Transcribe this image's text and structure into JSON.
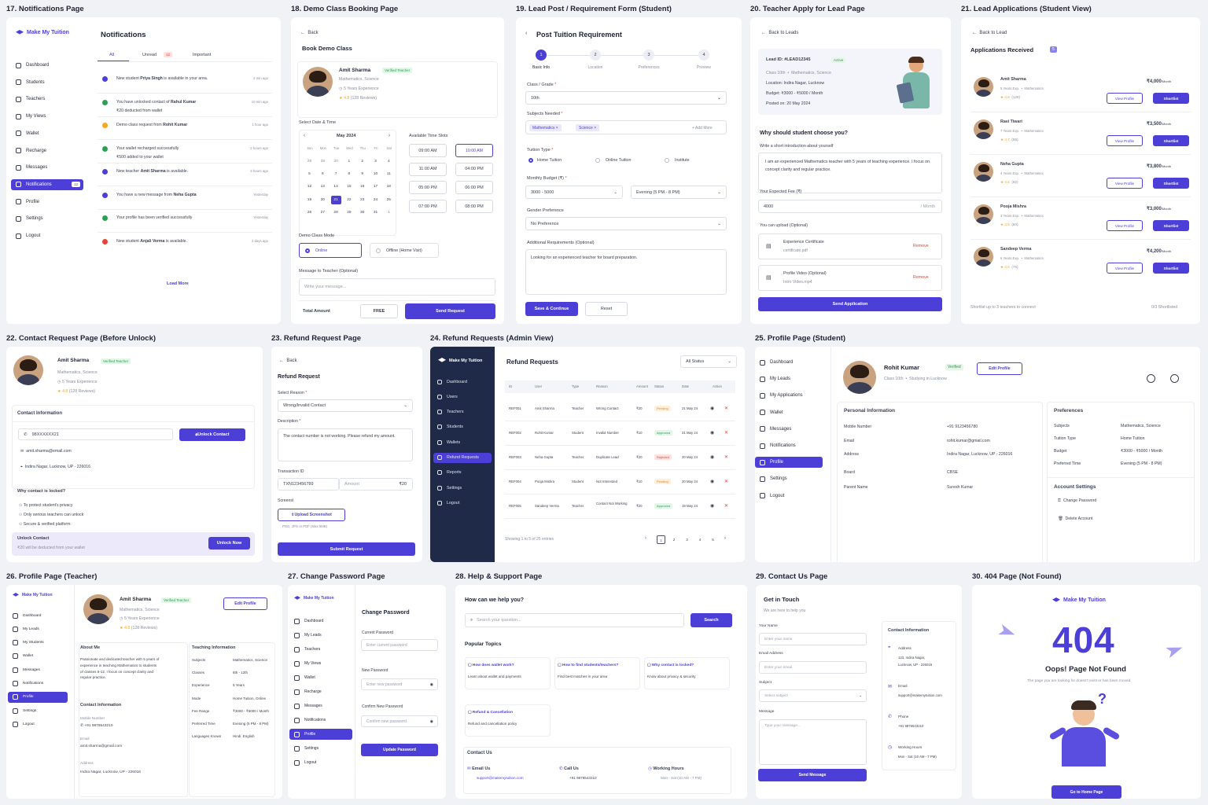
{
  "brand": "Make My Tuition",
  "s17": {
    "title": "17. Notifications Page",
    "heading": "Notifications",
    "nav": [
      "Dashboard",
      "Students",
      "Teachers",
      "My Views",
      "Wallet",
      "Recharge",
      "Messages",
      "Notifications",
      "Profile",
      "Settings",
      "Logout"
    ],
    "nav_badge": "12",
    "tabs": [
      "All",
      "Unread",
      "Important"
    ],
    "unread_count": "12",
    "items": [
      {
        "a": "New student ",
        "b": "Priya Singh",
        "c": " is available in your area.",
        "d": "",
        "time": "2 min ago",
        "color": "#4b3fd8"
      },
      {
        "a": "You have unlocked contact of ",
        "b": "Rahul Kumar",
        "c": "",
        "d": "₹20 deducted from wallet",
        "time": "10 min ago",
        "color": "#2f9e55"
      },
      {
        "a": "Demo class request from ",
        "b": "Rohit Kumar",
        "c": "",
        "d": "",
        "time": "1 hour ago",
        "color": "#f5a623"
      },
      {
        "a": "Your wallet recharged successfully",
        "b": "",
        "c": "",
        "d": "₹500 added to your wallet",
        "time": "2 hours ago",
        "color": "#2f9e55"
      },
      {
        "a": "New teacher ",
        "b": "Amit Sharma",
        "c": " is available.",
        "d": "",
        "time": "3 hours ago",
        "color": "#4b3fd8"
      },
      {
        "a": "You have a new message from ",
        "b": "Neha Gupta",
        "c": "",
        "d": "",
        "time": "Yesterday",
        "color": "#4b3fd8"
      },
      {
        "a": "Your profile has been verified successfully",
        "b": "",
        "c": "",
        "d": "",
        "time": "Yesterday",
        "color": "#2f9e55"
      },
      {
        "a": "New student ",
        "b": "Anjali Verma",
        "c": " is available.",
        "d": "",
        "time": "2 days ago",
        "color": "#e0453a"
      }
    ],
    "load_more": "Load More"
  },
  "s18": {
    "title": "18. Demo Class Booking Page",
    "back": "Back",
    "heading": "Book Demo Class",
    "name": "Amit Sharma",
    "verified": "Verified Teacher",
    "subjects": "Mathematics, Science",
    "exp": "5 Years Experience",
    "rating": "★ 4.8",
    "reviews": "(128 Reviews)",
    "date_label": "Select Date & Time",
    "month": "May 2024",
    "days": [
      "Sun",
      "Mon",
      "Tue",
      "Wed",
      "Thu",
      "Fri",
      "Sat"
    ],
    "dates": [
      [
        "28",
        "29",
        "30",
        "1",
        "2",
        "3",
        "4"
      ],
      [
        "5",
        "6",
        "7",
        "8",
        "9",
        "10",
        "11"
      ],
      [
        "12",
        "13",
        "14",
        "15",
        "16",
        "17",
        "18"
      ],
      [
        "19",
        "20",
        "21",
        "22",
        "23",
        "24",
        "25"
      ],
      [
        "26",
        "27",
        "28",
        "29",
        "30",
        "31",
        "1"
      ]
    ],
    "slots_label": "Available Time Slots",
    "slots": [
      "09:00 AM",
      "10:00 AM",
      "11:00 AM",
      "04:00 PM",
      "05:00 PM",
      "06:00 PM",
      "07:00 PM",
      "08:00 PM"
    ],
    "mode_label": "Demo Class Mode",
    "online": "Online",
    "offline": "Offline (Home Visit)",
    "msg_label": "Message to Teacher (Optional)",
    "msg_ph": "Write your message...",
    "total": "Total Amount",
    "free": "FREE",
    "send": "Send Request"
  },
  "s19": {
    "title": "19. Lead Post / Requirement Form (Student)",
    "heading": "Post Tuition Requirement",
    "steps": [
      {
        "n": "1",
        "l": "Basic Info"
      },
      {
        "n": "2",
        "l": "Location"
      },
      {
        "n": "3",
        "l": "Preferences"
      },
      {
        "n": "4",
        "l": "Preview"
      }
    ],
    "class_label": "Class / Grade",
    "class_val": "10th",
    "subj_label": "Subjects Needed",
    "subj": [
      "Mathematics",
      "Science"
    ],
    "add_more": "+ Add More",
    "type_label": "Tuition Type",
    "types": [
      "Home Tuition",
      "Online Tuition",
      "Institute"
    ],
    "budget_label": "Monthly Budget (₹)",
    "budget": "3000 - 5000",
    "time": "Evening (5 PM - 8 PM)",
    "gender_label": "Gender Preference",
    "gender": "No Preference",
    "req_label": "Additional Requirements (Optional)",
    "req": "Looking for an experienced teacher for board preparation.",
    "save": "Save & Continue",
    "reset": "Reset"
  },
  "s20": {
    "title": "20. Teacher Apply for Lead Page",
    "back": "Back to Leads",
    "lead_id": "Lead ID: #LEAD12345",
    "active": "Active",
    "class": "Class 10th",
    "subjects": "Mathematics, Science",
    "loc": "Location:  Indira Nagar, Lucknow",
    "budget": "Budget:  ₹3000 - ₹5000 / Month",
    "posted": "Posted on:  20 May 2024",
    "why": "Why should student choose you?",
    "intro_label": "Write a short introduction about yourself",
    "intro": "I am an experienced Mathematics teacher with 5 years of teaching experience. I focus on concept clarity and regular practice.",
    "fee_label": "Your Expected Fee (₹)",
    "fee": "4000",
    "month": "/ Month",
    "upload_label": "You can upload (Optional)",
    "files": [
      {
        "t": "Experience Certificate",
        "f": "certificate.pdf"
      },
      {
        "t": "Profile Video (Optional)",
        "f": "Intro Video.mp4"
      }
    ],
    "remove": "Remove",
    "submit": "Send Application"
  },
  "s21": {
    "title": "21. Lead Applications (Student View)",
    "back": "Back to Lead",
    "heading": "Applications Received",
    "count": "5",
    "apps": [
      {
        "name": "Amit Sharma",
        "exp": "5 Years Exp.",
        "subj": "Mathematics",
        "rating": "4.8",
        "rev": "(128)",
        "fee": "₹4,000"
      },
      {
        "name": "Ravi Tiwari",
        "exp": "7 Years Exp.",
        "subj": "Mathematics",
        "rating": "4.7",
        "rev": "(85)",
        "fee": "₹3,500"
      },
      {
        "name": "Neha Gupta",
        "exp": "4 Years Exp.",
        "subj": "Mathematics",
        "rating": "4.6",
        "rev": "(62)",
        "fee": "₹3,800"
      },
      {
        "name": "Pooja Mishra",
        "exp": "3 Years Exp.",
        "subj": "Mathematics",
        "rating": "4.5",
        "rev": "(60)",
        "fee": "₹3,000"
      },
      {
        "name": "Sandeep Verma",
        "exp": "6 Years Exp.",
        "subj": "Mathematics",
        "rating": "4.6",
        "rev": "(75)",
        "fee": "₹4,200"
      }
    ],
    "per": "/Month",
    "view": "View Profile",
    "short": "Shortlist",
    "footer": "Shortlist up to 3 teachers to connect",
    "shortlisted": "0/3 Shortlisted"
  },
  "s22": {
    "title": "22. Contact Request Page (Before Unlock)",
    "name": "Amit Sharma",
    "verified": "Verified Teacher",
    "subjects": "Mathematics, Science",
    "exp": "5 Years Experience",
    "rating": "★ 4.8",
    "reviews": "(128 Reviews)",
    "ci": "Contact Information",
    "phone": "98XXXXXX21",
    "unlock": "Unlock Contact",
    "email": "amit.sharma@email.com",
    "addr": "Indira Nagar, Lucknow, UP - 226016",
    "why": "Why contact is locked?",
    "reasons": [
      "To protect student's privacy",
      "Only serious teachers can unlock",
      "Secure & verified platform"
    ],
    "uc": "Unlock Contact",
    "uc_sub": "₹20 will be deducted from your wallet",
    "unlock_now": "Unlock Now"
  },
  "s23": {
    "title": "23. Refund Request Page",
    "back": "Back",
    "heading": "Refund Request",
    "reason_label": "Select Reason",
    "reason": "Wrong/Invalid Contact",
    "desc_label": "Description",
    "desc": "The contact number is not working. Please refund my amount.",
    "txn_label": "Transaction ID",
    "txn": "TXN123456789",
    "amount": "Amount",
    "amount_val": "₹20",
    "ss_label": "Screensl",
    "upload": "Upload Screenshot",
    "upload_hint": "PNG, JPG or PDF (Max 5MB)",
    "submit": "Submit Request"
  },
  "s24": {
    "title": "24. Refund Requests (Admin View)",
    "heading": "Refund Requests",
    "filter": "All Status",
    "nav": [
      "Dashboard",
      "Users",
      "Teachers",
      "Students",
      "Wallets",
      "Refund Requests",
      "Reports",
      "Settings",
      "Logout"
    ],
    "cols": [
      "ID",
      "User",
      "Type",
      "Reason",
      "Amount",
      "Status",
      "Date",
      "Action"
    ],
    "rows": [
      {
        "id": "REF001",
        "user": "Amit Sharma",
        "type": "Teacher",
        "reason": "Wrong Contact",
        "amt": "₹20",
        "status": "Pending",
        "date": "21 May 24"
      },
      {
        "id": "REF002",
        "user": "Rohit Kumar",
        "type": "Student",
        "reason": "Invalid Number",
        "amt": "₹10",
        "status": "Approved",
        "date": "21 May 24"
      },
      {
        "id": "REF003",
        "user": "Neha Gupta",
        "type": "Teacher",
        "reason": "Duplicate Lead",
        "amt": "₹20",
        "status": "Rejected",
        "date": "20 May 24"
      },
      {
        "id": "REF004",
        "user": "Pooja Mishra",
        "type": "Student",
        "reason": "Not Interested",
        "amt": "₹10",
        "status": "Pending",
        "date": "20 May 24"
      },
      {
        "id": "REF005",
        "user": "Sandeep Verma",
        "type": "Teacher",
        "reason": "Contact Not Working",
        "amt": "₹20",
        "status": "Approved",
        "date": "19 May 24"
      }
    ],
    "showing": "Showing 1 to 5 of 25 entries",
    "pages": [
      "1",
      "2",
      "3",
      "4",
      "5"
    ]
  },
  "s25": {
    "title": "25. Profile Page (Student)",
    "nav": [
      "Dashboard",
      "My Leads",
      "My Applications",
      "Wallet",
      "Messages",
      "Notifications",
      "Profile",
      "Settings",
      "Logout"
    ],
    "name": "Rohit Kumar",
    "verified": "Verified",
    "class": "Class 10th",
    "loc": "Studying in Lucknow",
    "edit": "Edit Profile",
    "pi": "Personal Information",
    "fields": [
      {
        "k": "Mobile Number",
        "v": "+91 9123456780"
      },
      {
        "k": "Email",
        "v": "rohit.kumar@gmail.com"
      },
      {
        "k": "Address",
        "v": "Indira Nagar, Lucknow, UP - 226016"
      },
      {
        "k": "Board",
        "v": "CBSE"
      },
      {
        "k": "Parent Name",
        "v": "Suresh Kumar"
      }
    ],
    "pref": "Preferences",
    "prefs": [
      {
        "k": "Subjects",
        "v": "Mathematics, Science"
      },
      {
        "k": "Tuition Type",
        "v": "Home Tuition"
      },
      {
        "k": "Budget",
        "v": "₹3000 - ₹5000 / Month"
      },
      {
        "k": "Preferred Time",
        "v": "Evening (5 PM - 8 PM)"
      }
    ],
    "acc": "Account Settings",
    "change": "Change Password",
    "delete": "Delete Account"
  },
  "s26": {
    "title": "26. Profile Page (Teacher)",
    "nav": [
      "Dashboard",
      "My Leads",
      "My Students",
      "Wallet",
      "Messages",
      "Notifications",
      "Profile",
      "Settings",
      "Logout"
    ],
    "name": "Amit Sharma",
    "verified": "Verified Teacher",
    "subjects": "Mathematics, Science",
    "exp": "5 Years Experience",
    "rating": "★ 4.8",
    "reviews": "(128 Reviews)",
    "edit": "Edit Profile",
    "about": "About Me",
    "about_txt": [
      "Passionate and dedicated teacher with 5 years of",
      "experience in teaching Mathematics to students",
      "of classes 6-12. I focus on concept clarity and",
      "regular practice."
    ],
    "ci": "Contact Information",
    "mob_l": "Mobile Number",
    "mob": "+91 9876543210",
    "email_l": "Email",
    "email": "amit.sharma@gmail.com",
    "addr_l": "Address",
    "addr": "Indira Nagar, Lucknow, UP - 226016",
    "ti": "Teaching Information",
    "tinfo": [
      {
        "k": "Subjects",
        "v": "Mathematics, Science"
      },
      {
        "k": "Classes",
        "v": "6th - 12th"
      },
      {
        "k": "Experience",
        "v": "5 Years"
      },
      {
        "k": "Mode",
        "v": "Home Tuition, Online"
      },
      {
        "k": "Fee Range",
        "v": "₹3000 - ₹6000 / Month"
      },
      {
        "k": "Preferred Time",
        "v": "Evening (5 PM - 8 PM)"
      },
      {
        "k": "Languages Known",
        "v": "Hindi, English"
      }
    ]
  },
  "s27": {
    "title": "27. Change Password Page",
    "nav": [
      "Dashboard",
      "My Leads",
      "Teachers",
      "My Views",
      "Wallet",
      "Recharge",
      "Messages",
      "Notifications",
      "Profile",
      "Settings",
      "Logout"
    ],
    "heading": "Change Password",
    "cur": "Current Password",
    "cur_ph": "Enter current password",
    "new": "New Password",
    "new_ph": "Enter new password",
    "conf": "Confirm New Password",
    "conf_ph": "Confirm new password",
    "update": "Update Password"
  },
  "s28": {
    "title": "28. Help & Support Page",
    "heading": "How can we help you?",
    "search_ph": "Search your question...",
    "search": "Search",
    "topics": "Popular Topics",
    "cards": [
      {
        "t": "How does wallet work?",
        "d": "Learn about wallet and payments"
      },
      {
        "t": "How to find students/teachers?",
        "d": "Find best matches in your area"
      },
      {
        "t": "Why contact is locked?",
        "d": "Know about privacy & security"
      },
      {
        "t": "Refund & Cancellation",
        "d": "Refund and cancellation policy"
      }
    ],
    "contact": "Contact Us",
    "email_l": "Email Us",
    "email": "support@makemytuition.com",
    "call_l": "Call Us",
    "call": "+91 9876543210",
    "hours_l": "Working Hours",
    "hours": "Mon - Sat (10 AM - 7 PM)"
  },
  "s29": {
    "title": "29. Contact Us Page",
    "heading": "Get in Touch",
    "sub": "We are here to help you",
    "name_l": "Your Name",
    "name_ph": "Enter your name",
    "email_l": "Email Address",
    "email_ph": "Enter your email",
    "subj_l": "Subject",
    "subj_ph": "Select subject",
    "msg_l": "Message",
    "msg_ph": "Type your message...",
    "send": "Send Message",
    "ci": "Contact Information",
    "addr_l": "Address",
    "addr": [
      "123, Indira Nagar,",
      "Lucknow, UP - 226016"
    ],
    "email2_l": "Email",
    "email2": "support@makemytuition.com",
    "phone_l": "Phone",
    "phone": "+91 9876543210",
    "hours_l": "Working Hours",
    "hours": "Mon - Sat (10 AM - 7 PM)"
  },
  "s30": {
    "title": "30. 404 Page (Not Found)",
    "code": "404",
    "oops": "Oops! Page Not Found",
    "sub": "The page you are looking for doesn't exist or has been moved.",
    "home": "Go to Home Page"
  }
}
